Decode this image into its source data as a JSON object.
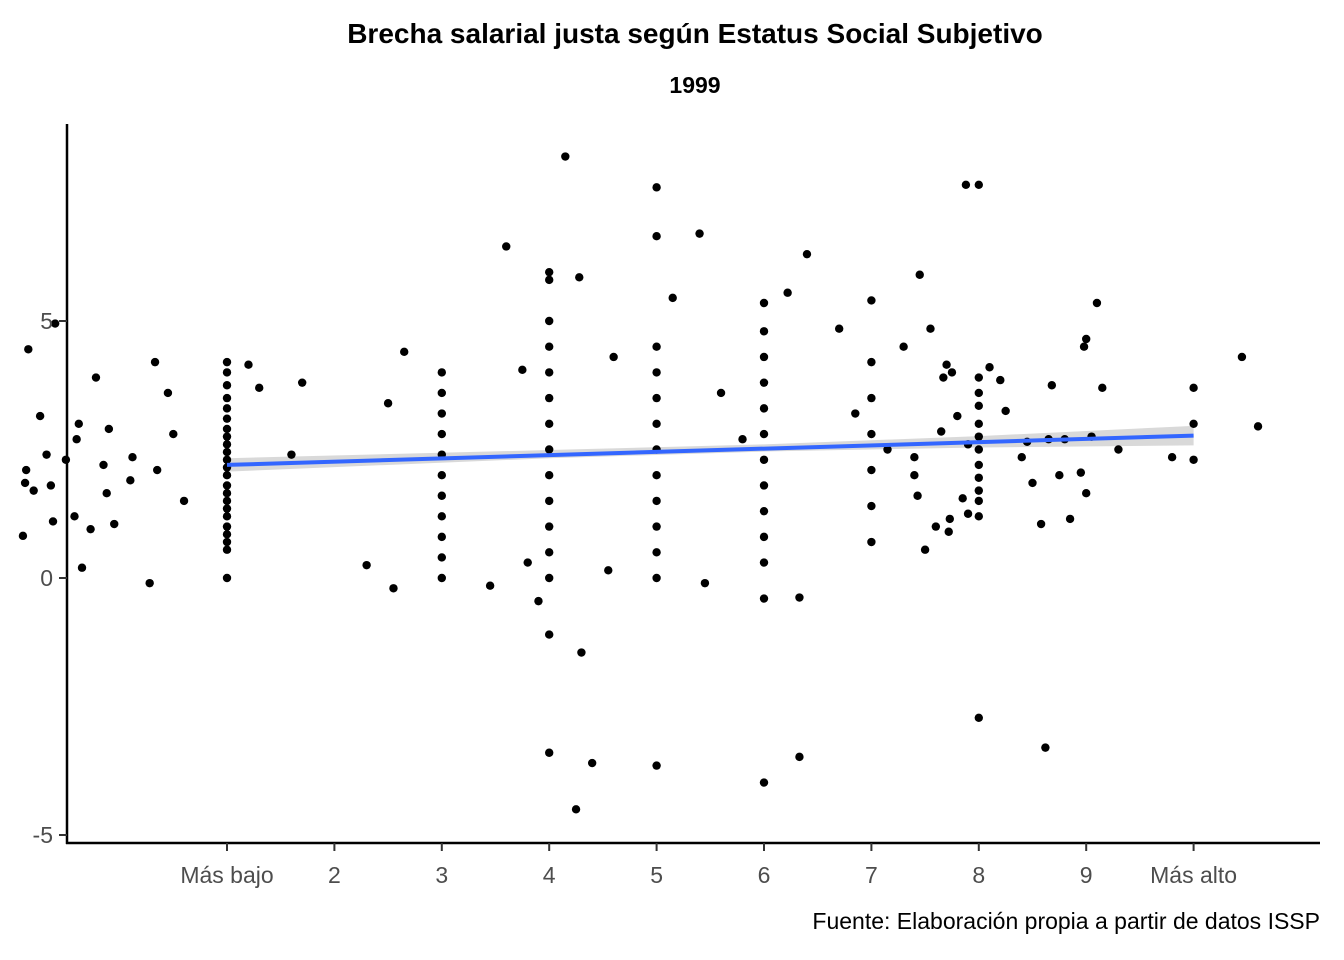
{
  "chart_data": {
    "type": "scatter",
    "title": "Brecha salarial justa según Estatus Social Subjetivo",
    "subtitle": "1999",
    "caption": "Fuente: Elaboración propia a partir de datos ISSP",
    "xlabel": "",
    "ylabel": "",
    "x_ticks": [
      {
        "value": 1,
        "label": "Más bajo"
      },
      {
        "value": 2,
        "label": "2"
      },
      {
        "value": 3,
        "label": "3"
      },
      {
        "value": 4,
        "label": "4"
      },
      {
        "value": 5,
        "label": "5"
      },
      {
        "value": 6,
        "label": "6"
      },
      {
        "value": 7,
        "label": "7"
      },
      {
        "value": 8,
        "label": "8"
      },
      {
        "value": 9,
        "label": "9"
      },
      {
        "value": 10,
        "label": "Más alto"
      }
    ],
    "y_ticks": [
      {
        "value": 5,
        "label": "5"
      },
      {
        "value": 0,
        "label": "0"
      },
      {
        "value": -5,
        "label": "-5"
      }
    ],
    "xlim": [
      -0.5,
      11.2
    ],
    "ylim": [
      -5.1,
      8.8
    ],
    "grid": false,
    "legend": "none",
    "colors": {
      "points": "#000000",
      "fit_line": "#3366FF",
      "confidence_band": "#cccccc"
    },
    "trend_line": {
      "x": [
        1,
        10
      ],
      "y": [
        2.2,
        2.77
      ]
    },
    "confidence_band": {
      "x": [
        1,
        4,
        6,
        8,
        10
      ],
      "lower": [
        2.07,
        2.33,
        2.46,
        2.54,
        2.58
      ],
      "upper": [
        2.33,
        2.49,
        2.6,
        2.76,
        2.96
      ]
    },
    "series": [
      {
        "values": [
          {
            "x": 1,
            "y": 0.0
          },
          {
            "x": 1,
            "y": 0.55
          },
          {
            "x": 1,
            "y": 0.7
          },
          {
            "x": 1,
            "y": 0.85
          },
          {
            "x": 1,
            "y": 1.0
          },
          {
            "x": 1,
            "y": 1.2
          },
          {
            "x": 1,
            "y": 1.35
          },
          {
            "x": 1,
            "y": 1.5
          },
          {
            "x": 1,
            "y": 1.65
          },
          {
            "x": 1,
            "y": 1.8
          },
          {
            "x": 1,
            "y": 2.0
          },
          {
            "x": 1,
            "y": 2.15
          },
          {
            "x": 1,
            "y": 2.3
          },
          {
            "x": 1,
            "y": 2.45
          },
          {
            "x": 1,
            "y": 2.6
          },
          {
            "x": 1,
            "y": 2.75
          },
          {
            "x": 1,
            "y": 2.9
          },
          {
            "x": 1,
            "y": 3.1
          },
          {
            "x": 1,
            "y": 3.3
          },
          {
            "x": 1,
            "y": 3.5
          },
          {
            "x": 1,
            "y": 3.75
          },
          {
            "x": 1,
            "y": 4.0
          },
          {
            "x": 1,
            "y": 4.2
          },
          {
            "x": -0.9,
            "y": 0.82
          },
          {
            "x": -0.88,
            "y": 1.85
          },
          {
            "x": -0.87,
            "y": 2.1
          },
          {
            "x": -0.85,
            "y": 4.45
          },
          {
            "x": -0.8,
            "y": 1.7
          },
          {
            "x": -0.74,
            "y": 3.15
          },
          {
            "x": -0.68,
            "y": 2.4
          },
          {
            "x": -0.64,
            "y": 1.8
          },
          {
            "x": -0.62,
            "y": 1.1
          },
          {
            "x": -0.6,
            "y": 4.95
          },
          {
            "x": -0.5,
            "y": 2.3
          },
          {
            "x": -0.42,
            "y": 1.2
          },
          {
            "x": -0.4,
            "y": 2.7
          },
          {
            "x": -0.38,
            "y": 3.0
          },
          {
            "x": -0.35,
            "y": 0.2
          },
          {
            "x": -0.27,
            "y": 0.95
          },
          {
            "x": -0.22,
            "y": 3.9
          },
          {
            "x": -0.15,
            "y": 2.2
          },
          {
            "x": -0.12,
            "y": 1.65
          },
          {
            "x": -0.1,
            "y": 2.9
          },
          {
            "x": -0.05,
            "y": 1.05
          },
          {
            "x": 0.1,
            "y": 1.9
          },
          {
            "x": 0.12,
            "y": 2.35
          },
          {
            "x": 0.28,
            "y": -0.1
          },
          {
            "x": 0.33,
            "y": 4.2
          },
          {
            "x": 0.35,
            "y": 2.1
          },
          {
            "x": 0.45,
            "y": 3.6
          },
          {
            "x": 0.5,
            "y": 2.8
          },
          {
            "x": 0.6,
            "y": 1.5
          },
          {
            "x": 1.2,
            "y": 4.15
          },
          {
            "x": 1.3,
            "y": 3.7
          },
          {
            "x": 1.6,
            "y": 2.4
          },
          {
            "x": 1.7,
            "y": 3.8
          },
          {
            "x": 2.3,
            "y": 0.25
          },
          {
            "x": 2.5,
            "y": 3.4
          },
          {
            "x": 2.55,
            "y": -0.2
          },
          {
            "x": 2.65,
            "y": 4.4
          },
          {
            "x": 3.0,
            "y": 0.0
          },
          {
            "x": 3.0,
            "y": 0.4
          },
          {
            "x": 3.0,
            "y": 0.8
          },
          {
            "x": 3.0,
            "y": 1.2
          },
          {
            "x": 3.0,
            "y": 1.6
          },
          {
            "x": 3.0,
            "y": 2.0
          },
          {
            "x": 3.0,
            "y": 2.4
          },
          {
            "x": 3.0,
            "y": 2.8
          },
          {
            "x": 3.0,
            "y": 3.2
          },
          {
            "x": 3.0,
            "y": 3.6
          },
          {
            "x": 3.0,
            "y": 4.0
          },
          {
            "x": 3.6,
            "y": 6.45
          },
          {
            "x": 3.45,
            "y": -0.15
          },
          {
            "x": 3.75,
            "y": 4.05
          },
          {
            "x": 3.8,
            "y": 0.3
          },
          {
            "x": 3.9,
            "y": -0.45
          },
          {
            "x": 4.0,
            "y": -1.1
          },
          {
            "x": 4.0,
            "y": -3.4
          },
          {
            "x": 4.0,
            "y": 0.0
          },
          {
            "x": 4.0,
            "y": 0.5
          },
          {
            "x": 4.0,
            "y": 1.0
          },
          {
            "x": 4.0,
            "y": 1.5
          },
          {
            "x": 4.0,
            "y": 2.0
          },
          {
            "x": 4.0,
            "y": 2.5
          },
          {
            "x": 4.0,
            "y": 3.0
          },
          {
            "x": 4.0,
            "y": 3.5
          },
          {
            "x": 4.0,
            "y": 4.0
          },
          {
            "x": 4.0,
            "y": 4.5
          },
          {
            "x": 4.0,
            "y": 5.0
          },
          {
            "x": 4.0,
            "y": 5.8
          },
          {
            "x": 4.0,
            "y": 5.95
          },
          {
            "x": 4.15,
            "y": 8.2
          },
          {
            "x": 4.25,
            "y": -4.5
          },
          {
            "x": 4.3,
            "y": -1.45
          },
          {
            "x": 4.28,
            "y": 5.85
          },
          {
            "x": 4.4,
            "y": -3.6
          },
          {
            "x": 4.55,
            "y": 0.15
          },
          {
            "x": 4.6,
            "y": 4.3
          },
          {
            "x": 5.0,
            "y": -3.65
          },
          {
            "x": 5.0,
            "y": 0.0
          },
          {
            "x": 5.0,
            "y": 0.5
          },
          {
            "x": 5.0,
            "y": 1.0
          },
          {
            "x": 5.0,
            "y": 1.5
          },
          {
            "x": 5.0,
            "y": 2.0
          },
          {
            "x": 5.0,
            "y": 2.5
          },
          {
            "x": 5.0,
            "y": 3.0
          },
          {
            "x": 5.0,
            "y": 3.5
          },
          {
            "x": 5.0,
            "y": 4.0
          },
          {
            "x": 5.0,
            "y": 4.5
          },
          {
            "x": 5.0,
            "y": 6.65
          },
          {
            "x": 5.0,
            "y": 7.6
          },
          {
            "x": 5.15,
            "y": 5.45
          },
          {
            "x": 5.4,
            "y": 6.7
          },
          {
            "x": 5.45,
            "y": -0.1
          },
          {
            "x": 5.6,
            "y": 3.6
          },
          {
            "x": 5.8,
            "y": 2.7
          },
          {
            "x": 6.0,
            "y": -3.98
          },
          {
            "x": 6.0,
            "y": -0.4
          },
          {
            "x": 6.0,
            "y": 0.3
          },
          {
            "x": 6.0,
            "y": 0.8
          },
          {
            "x": 6.0,
            "y": 1.3
          },
          {
            "x": 6.0,
            "y": 1.8
          },
          {
            "x": 6.0,
            "y": 2.3
          },
          {
            "x": 6.0,
            "y": 2.8
          },
          {
            "x": 6.0,
            "y": 3.3
          },
          {
            "x": 6.0,
            "y": 3.8
          },
          {
            "x": 6.0,
            "y": 4.3
          },
          {
            "x": 6.0,
            "y": 4.8
          },
          {
            "x": 6.0,
            "y": 5.35
          },
          {
            "x": 6.22,
            "y": 5.55
          },
          {
            "x": 6.33,
            "y": -3.48
          },
          {
            "x": 6.33,
            "y": -0.38
          },
          {
            "x": 6.4,
            "y": 6.3
          },
          {
            "x": 6.7,
            "y": 4.85
          },
          {
            "x": 6.85,
            "y": 3.2
          },
          {
            "x": 7.0,
            "y": 0.7
          },
          {
            "x": 7.0,
            "y": 1.4
          },
          {
            "x": 7.0,
            "y": 2.1
          },
          {
            "x": 7.0,
            "y": 2.8
          },
          {
            "x": 7.0,
            "y": 3.5
          },
          {
            "x": 7.0,
            "y": 4.2
          },
          {
            "x": 7.0,
            "y": 5.4
          },
          {
            "x": 7.15,
            "y": 2.5
          },
          {
            "x": 7.3,
            "y": 4.5
          },
          {
            "x": 7.4,
            "y": 2.35
          },
          {
            "x": 7.4,
            "y": 2.0
          },
          {
            "x": 7.43,
            "y": 1.6
          },
          {
            "x": 7.45,
            "y": 5.9
          },
          {
            "x": 7.5,
            "y": 0.55
          },
          {
            "x": 7.55,
            "y": 4.85
          },
          {
            "x": 7.6,
            "y": 1.0
          },
          {
            "x": 7.65,
            "y": 2.85
          },
          {
            "x": 7.67,
            "y": 3.9
          },
          {
            "x": 7.7,
            "y": 4.15
          },
          {
            "x": 7.72,
            "y": 0.9
          },
          {
            "x": 7.73,
            "y": 1.15
          },
          {
            "x": 7.75,
            "y": 4.0
          },
          {
            "x": 7.8,
            "y": 3.15
          },
          {
            "x": 7.85,
            "y": 1.55
          },
          {
            "x": 7.88,
            "y": 7.65
          },
          {
            "x": 7.9,
            "y": 2.6
          },
          {
            "x": 7.9,
            "y": 1.25
          },
          {
            "x": 8.0,
            "y": -2.72
          },
          {
            "x": 8.0,
            "y": 7.65
          },
          {
            "x": 8.0,
            "y": 1.2
          },
          {
            "x": 8.0,
            "y": 1.5
          },
          {
            "x": 8.0,
            "y": 1.7
          },
          {
            "x": 8.0,
            "y": 1.95
          },
          {
            "x": 8.0,
            "y": 2.2
          },
          {
            "x": 8.0,
            "y": 2.5
          },
          {
            "x": 8.0,
            "y": 2.75
          },
          {
            "x": 8.0,
            "y": 3.0
          },
          {
            "x": 8.0,
            "y": 3.35
          },
          {
            "x": 8.0,
            "y": 3.6
          },
          {
            "x": 8.0,
            "y": 3.9
          },
          {
            "x": 8.1,
            "y": 4.1
          },
          {
            "x": 8.2,
            "y": 3.85
          },
          {
            "x": 8.25,
            "y": 3.25
          },
          {
            "x": 8.4,
            "y": 2.35
          },
          {
            "x": 8.45,
            "y": 2.65
          },
          {
            "x": 8.5,
            "y": 1.85
          },
          {
            "x": 8.58,
            "y": 1.05
          },
          {
            "x": 8.62,
            "y": -3.3
          },
          {
            "x": 8.65,
            "y": 2.7
          },
          {
            "x": 8.68,
            "y": 3.75
          },
          {
            "x": 8.75,
            "y": 2.0
          },
          {
            "x": 8.8,
            "y": 2.7
          },
          {
            "x": 8.85,
            "y": 1.15
          },
          {
            "x": 8.95,
            "y": 2.05
          },
          {
            "x": 8.98,
            "y": 4.5
          },
          {
            "x": 9.0,
            "y": 4.65
          },
          {
            "x": 9.05,
            "y": 2.75
          },
          {
            "x": 9.0,
            "y": 1.65
          },
          {
            "x": 9.1,
            "y": 5.35
          },
          {
            "x": 9.15,
            "y": 3.7
          },
          {
            "x": 9.3,
            "y": 2.5
          },
          {
            "x": 9.8,
            "y": 2.35
          },
          {
            "x": 10.0,
            "y": 2.3
          },
          {
            "x": 10.0,
            "y": 3.0
          },
          {
            "x": 10.0,
            "y": 3.7
          },
          {
            "x": 10.45,
            "y": 4.3
          },
          {
            "x": 10.6,
            "y": 2.95
          }
        ]
      }
    ]
  }
}
